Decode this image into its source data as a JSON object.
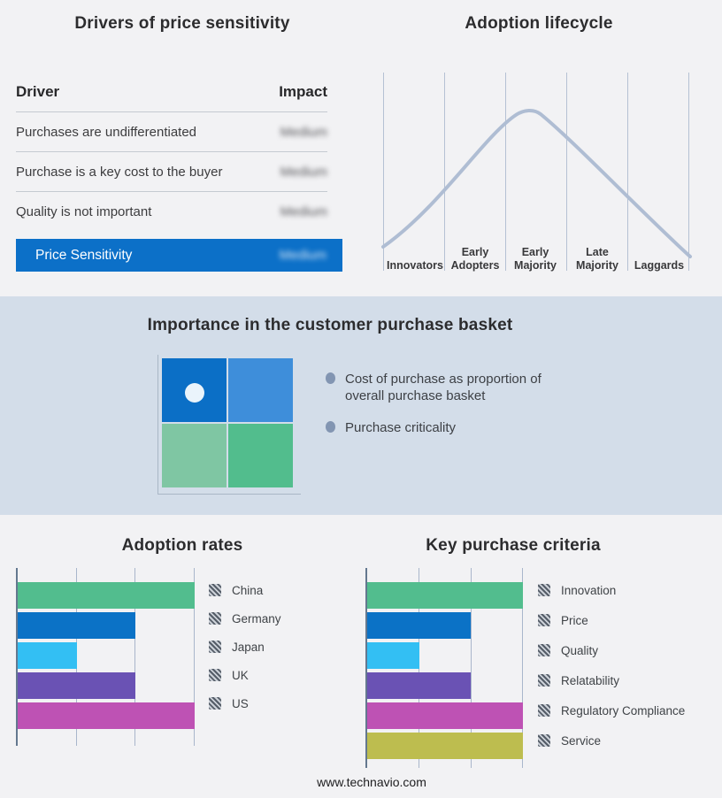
{
  "footer": {
    "text": "www.technavio.com"
  },
  "basket_panel": {
    "title": "Importance in the customer purchase basket",
    "bullets": [
      "Cost of purchase as proportion of overall purchase basket",
      "Purchase criticality"
    ],
    "quadrant_colors": [
      "#0B6FC6",
      "#3E8EDA",
      "#7FC6A3",
      "#52BD8D"
    ],
    "marker": "white-dot-in-top-left-quadrant",
    "band_background": "#D3DDE9"
  },
  "chart_data": [
    {
      "id": "adoption-lifecycle",
      "type": "line",
      "title": "Adoption lifecycle",
      "x_categories": [
        "Innovators",
        "Early Adopters",
        "Early Majority",
        "Late Majority",
        "Laggards"
      ],
      "shape": "bell-curve",
      "peak_at": "Early Majority",
      "line_color": "#AFBDD3",
      "grid": "vertical-stage-dividers",
      "ylabel": null
    },
    {
      "id": "adoption-rates",
      "type": "bar",
      "orientation": "horizontal",
      "title": "Adoption rates",
      "categories": [
        "China",
        "Germany",
        "Japan",
        "UK",
        "US"
      ],
      "values": [
        3,
        2,
        1,
        2,
        3
      ],
      "xlim": [
        0,
        3
      ],
      "gridlines_x": [
        1,
        2,
        3
      ],
      "colors": [
        "#52BD8E",
        "#0B72C6",
        "#33BFF3",
        "#6A52B4",
        "#BE52B4"
      ],
      "legend_position": "right",
      "legend_swatch": "gray-hatch"
    },
    {
      "id": "key-purchase-criteria",
      "type": "bar",
      "orientation": "horizontal",
      "title": "Key purchase criteria",
      "categories": [
        "Innovation",
        "Price",
        "Quality",
        "Relatability",
        "Regulatory Compliance",
        "Service"
      ],
      "values": [
        3,
        2,
        1,
        2,
        3,
        3
      ],
      "xlim": [
        0,
        3
      ],
      "gridlines_x": [
        1,
        2,
        3
      ],
      "colors": [
        "#52BD8E",
        "#0B72C6",
        "#33BFF3",
        "#6A52B4",
        "#BE52B4",
        "#BDBD4F"
      ],
      "legend_position": "right",
      "legend_swatch": "gray-hatch"
    },
    {
      "id": "drivers-of-price-sensitivity",
      "type": "table",
      "title": "Drivers of price sensitivity",
      "columns": [
        "Driver",
        "Impact"
      ],
      "rows": [
        [
          "Purchases are undifferentiated",
          "Medium"
        ],
        [
          "Purchase is a key cost to the buyer",
          "Medium"
        ],
        [
          "Quality is not important",
          "Medium"
        ]
      ],
      "summary_row": [
        "Price Sensitivity",
        "Medium"
      ],
      "summary_row_color": "#0C70C8",
      "impact_values_blurred": true
    }
  ]
}
